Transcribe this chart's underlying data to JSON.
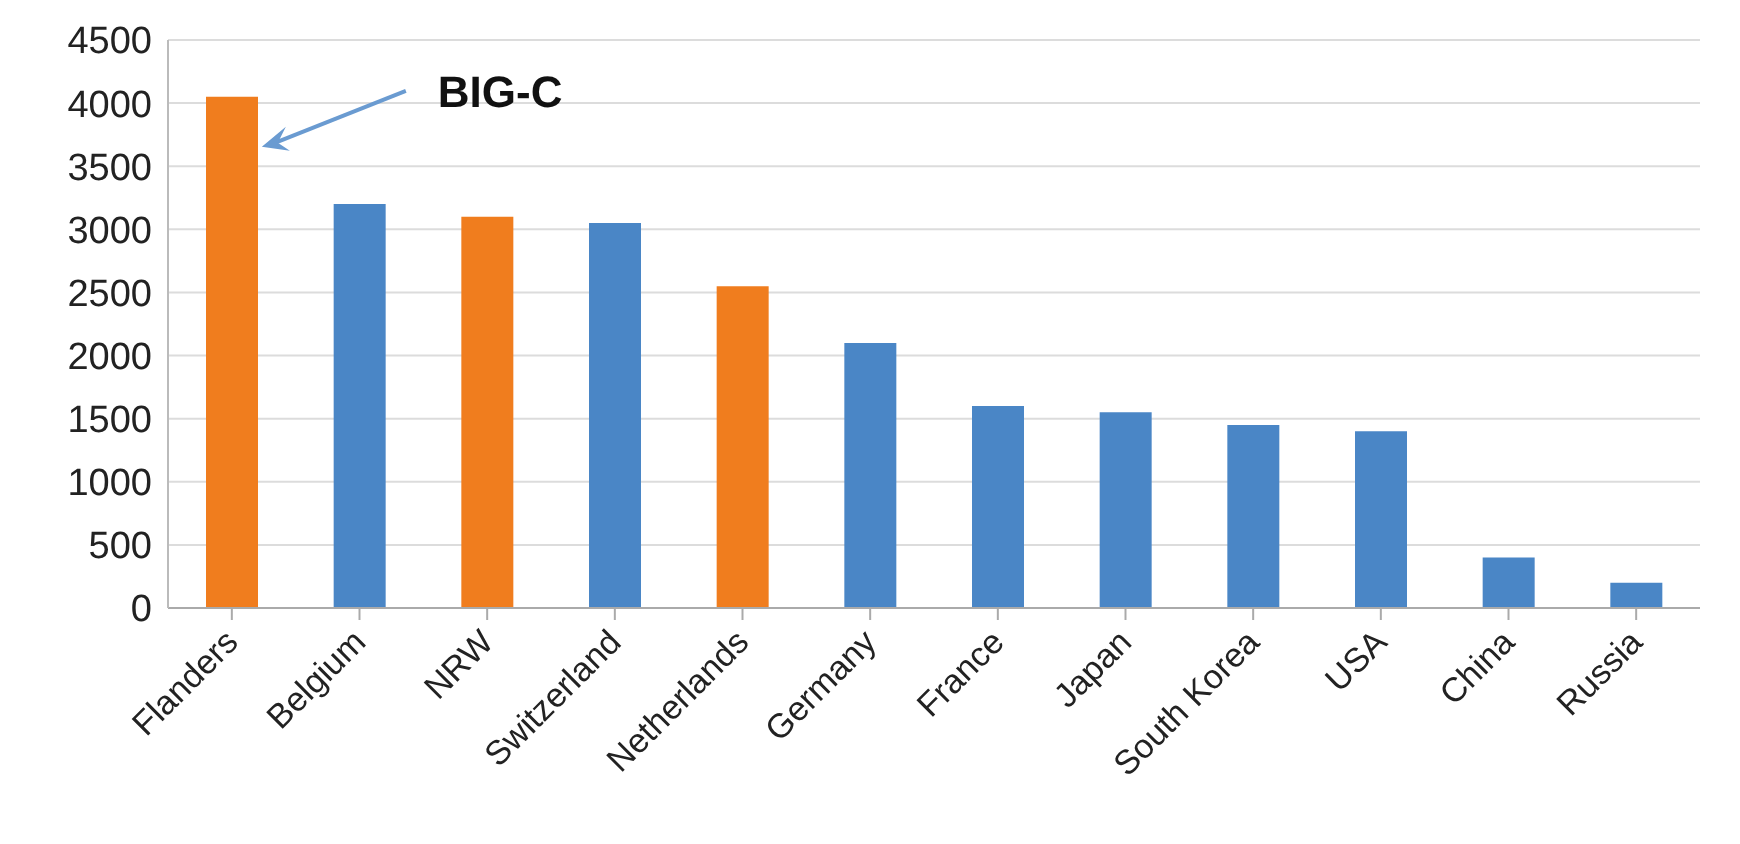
{
  "chart_data": {
    "type": "bar",
    "categories": [
      "Flanders",
      "Belgium",
      "NRW",
      "Switzerland",
      "Netherlands",
      "Germany",
      "France",
      "Japan",
      "South Korea",
      "USA",
      "China",
      "Russia"
    ],
    "values": [
      4050,
      3200,
      3100,
      3050,
      2550,
      2100,
      1600,
      1550,
      1450,
      1400,
      400,
      200
    ],
    "colors": [
      "#f07d1e",
      "#4a86c6",
      "#f07d1e",
      "#4a86c6",
      "#f07d1e",
      "#4a86c6",
      "#4a86c6",
      "#4a86c6",
      "#4a86c6",
      "#4a86c6",
      "#4a86c6",
      "#4a86c6"
    ],
    "ylim": [
      0,
      4500
    ],
    "yticks": [
      0,
      500,
      1000,
      1500,
      2000,
      2500,
      3000,
      3500,
      4000,
      4500
    ],
    "grid": "y",
    "legend": false,
    "annotations": [
      "BIG-C"
    ]
  }
}
